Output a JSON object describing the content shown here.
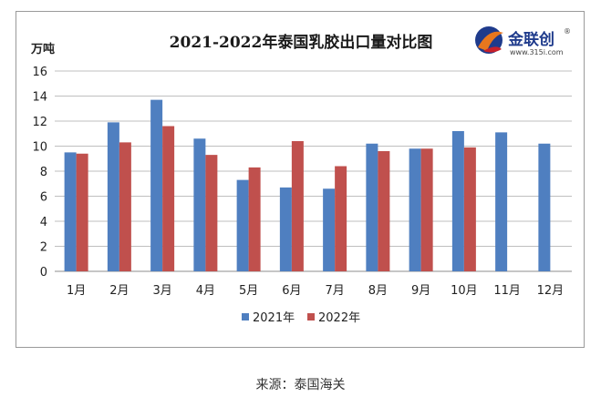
{
  "logo": {
    "name": "金联创",
    "url": "www.315i.com",
    "registered": "®",
    "colors": {
      "blue": "#1f3b8c",
      "orange": "#e8771e",
      "red": "#c8202a"
    }
  },
  "source_text": "来源：泰国海关",
  "chart_data": {
    "type": "bar",
    "title": "2021-2022年泰国乳胶出口量对比图",
    "ylabel": "万吨",
    "xlabel": "",
    "ylim": [
      0,
      16
    ],
    "yticks": [
      0,
      2,
      4,
      6,
      8,
      10,
      12,
      14,
      16
    ],
    "grid": true,
    "legend_position": "bottom",
    "categories": [
      "1月",
      "2月",
      "3月",
      "4月",
      "5月",
      "6月",
      "7月",
      "8月",
      "9月",
      "10月",
      "11月",
      "12月"
    ],
    "series": [
      {
        "name": "2021年",
        "color": "#4f7fc0",
        "values": [
          9.5,
          11.9,
          13.7,
          10.6,
          7.3,
          6.7,
          6.6,
          10.2,
          9.8,
          11.2,
          11.1,
          10.2
        ]
      },
      {
        "name": "2022年",
        "color": "#c0504d",
        "values": [
          9.4,
          10.3,
          11.6,
          9.3,
          8.3,
          10.4,
          8.4,
          9.6,
          9.8,
          9.9,
          null,
          null
        ]
      }
    ]
  }
}
